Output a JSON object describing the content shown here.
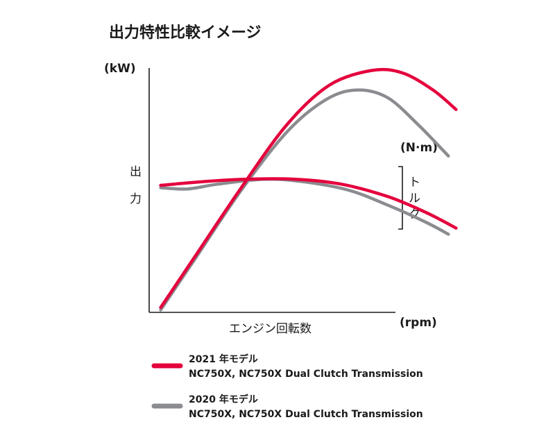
{
  "chart_data": {
    "type": "line",
    "title": "出力特性比較イメージ",
    "y_left_unit": "(kW)",
    "y_right_unit": "(N·m)",
    "x_unit": "(rpm)",
    "xlabel": "エンジン回転数",
    "ylabel_left": [
      "出",
      "力"
    ],
    "ylabel_right": [
      "ト",
      "ル",
      "ク"
    ],
    "axes": {
      "numeric_ticks": false,
      "grid": false,
      "legend_position": "bottom-left"
    },
    "series": [
      {
        "name": "2021 年モデル",
        "subtitle": "NC750X, NC750X Dual Clutch Transmission",
        "color": "#e4003c",
        "power": [
          [
            0.03,
            0.02
          ],
          [
            0.12,
            0.23
          ],
          [
            0.24,
            0.51
          ],
          [
            0.36,
            0.77
          ],
          [
            0.47,
            0.93
          ],
          [
            0.58,
            0.99
          ],
          [
            0.66,
            0.98
          ],
          [
            0.74,
            0.91
          ],
          [
            0.8,
            0.83
          ]
        ],
        "torque": [
          [
            0.03,
            0.52
          ],
          [
            0.14,
            0.535
          ],
          [
            0.25,
            0.545
          ],
          [
            0.38,
            0.545
          ],
          [
            0.5,
            0.525
          ],
          [
            0.62,
            0.475
          ],
          [
            0.72,
            0.41
          ],
          [
            0.8,
            0.345
          ]
        ]
      },
      {
        "name": "2020 年モデル",
        "subtitle": "NC750X, NC750X Dual Clutch Transmission",
        "color": "#8a8c90",
        "power": [
          [
            0.03,
            0.01
          ],
          [
            0.12,
            0.22
          ],
          [
            0.24,
            0.5
          ],
          [
            0.36,
            0.74
          ],
          [
            0.46,
            0.87
          ],
          [
            0.54,
            0.91
          ],
          [
            0.62,
            0.88
          ],
          [
            0.7,
            0.77
          ],
          [
            0.78,
            0.64
          ]
        ],
        "torque": [
          [
            0.03,
            0.51
          ],
          [
            0.1,
            0.505
          ],
          [
            0.18,
            0.525
          ],
          [
            0.3,
            0.545
          ],
          [
            0.4,
            0.535
          ],
          [
            0.52,
            0.5
          ],
          [
            0.62,
            0.44
          ],
          [
            0.72,
            0.37
          ],
          [
            0.78,
            0.32
          ]
        ]
      }
    ]
  }
}
